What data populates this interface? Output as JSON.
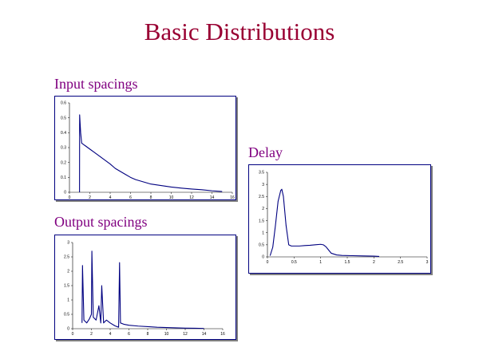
{
  "slide": {
    "title": "Basic Distributions"
  },
  "chart_data": [
    {
      "id": "input",
      "type": "line",
      "title": "Input spacings",
      "xlim": [
        0,
        16
      ],
      "ylim": [
        0,
        0.6
      ],
      "x_ticks": [
        0,
        2,
        4,
        6,
        8,
        10,
        12,
        14,
        16
      ],
      "y_ticks": [
        0,
        0.1,
        0.2,
        0.3,
        0.4,
        0.5,
        0.6
      ],
      "x_tick_labels": [
        "0",
        "2",
        "4",
        "6",
        "8",
        "10",
        "12",
        "14",
        "16"
      ],
      "y_tick_labels": [
        "0",
        "0.1",
        "0.2",
        "0.3",
        "0.4",
        "0.5",
        "0.6"
      ],
      "grid": false,
      "color": "#000080",
      "series": [
        {
          "x": [
            0.99,
            1.0,
            1.1,
            1.2,
            1.4,
            1.6,
            1.8,
            2.0,
            2.4,
            2.8,
            3.2,
            3.6,
            4.0,
            4.5,
            5.0,
            5.5,
            6.0,
            6.5,
            7.0,
            7.5,
            8.0,
            9.0,
            10.0,
            11.0,
            12.0,
            13.0,
            14.0,
            15.0
          ],
          "y": [
            0,
            0.52,
            0.4,
            0.33,
            0.32,
            0.31,
            0.3,
            0.29,
            0.27,
            0.25,
            0.23,
            0.21,
            0.19,
            0.16,
            0.14,
            0.12,
            0.1,
            0.085,
            0.075,
            0.065,
            0.055,
            0.045,
            0.035,
            0.028,
            0.022,
            0.017,
            0.01,
            0.005
          ]
        }
      ]
    },
    {
      "id": "delay",
      "type": "line",
      "title": "Delay",
      "xlim": [
        0,
        3
      ],
      "ylim": [
        0,
        3.5
      ],
      "x_ticks": [
        0,
        0.5,
        1,
        1.5,
        2,
        2.5,
        3
      ],
      "y_ticks": [
        0,
        0.5,
        1,
        1.5,
        2,
        2.5,
        3,
        3.5
      ],
      "x_tick_labels": [
        "0",
        "0.5",
        "1",
        "1.5",
        "2",
        "2.5",
        "3"
      ],
      "y_tick_labels": [
        "0",
        "0.5",
        "1",
        "1.5",
        "2",
        "2.5",
        "3",
        "3.5"
      ],
      "grid": false,
      "color": "#000080",
      "series": [
        {
          "x": [
            0.05,
            0.1,
            0.15,
            0.2,
            0.25,
            0.27,
            0.3,
            0.35,
            0.4,
            0.45,
            0.5,
            0.6,
            0.7,
            0.8,
            0.9,
            1.0,
            1.05,
            1.1,
            1.15,
            1.2,
            1.3,
            1.4,
            1.6,
            1.8,
            2.0,
            2.1
          ],
          "y": [
            0.05,
            0.4,
            1.3,
            2.3,
            2.75,
            2.8,
            2.5,
            1.3,
            0.5,
            0.45,
            0.45,
            0.45,
            0.47,
            0.48,
            0.5,
            0.52,
            0.5,
            0.42,
            0.28,
            0.15,
            0.08,
            0.06,
            0.05,
            0.04,
            0.03,
            0.02
          ]
        }
      ]
    },
    {
      "id": "output",
      "type": "line",
      "title": "Output spacings",
      "xlim": [
        0,
        16
      ],
      "ylim": [
        0,
        3
      ],
      "x_ticks": [
        0,
        2,
        4,
        6,
        8,
        10,
        12,
        14,
        16
      ],
      "y_ticks": [
        0,
        0.5,
        1,
        1.5,
        2,
        2.5,
        3
      ],
      "x_tick_labels": [
        "0",
        "2",
        "4",
        "6",
        "8",
        "10",
        "12",
        "14",
        "16"
      ],
      "y_tick_labels": [
        "0",
        "0.5",
        "1",
        "1.5",
        "2",
        "2.5",
        "3"
      ],
      "grid": false,
      "color": "#000080",
      "series": [
        {
          "x": [
            1.0,
            1.05,
            1.2,
            1.5,
            1.8,
            2.0,
            2.05,
            2.2,
            2.5,
            2.8,
            3.0,
            3.1,
            3.3,
            3.6,
            4.0,
            4.5,
            4.9,
            5.0,
            5.1,
            5.5,
            6.0,
            7.0,
            8.0,
            9.0,
            10.0,
            11.0,
            12.0,
            13.0,
            14.0
          ],
          "y": [
            0.2,
            2.2,
            0.3,
            0.2,
            0.35,
            0.5,
            2.7,
            0.4,
            0.3,
            0.8,
            0.2,
            1.5,
            0.2,
            0.3,
            0.2,
            0.1,
            0.05,
            2.3,
            0.2,
            0.15,
            0.12,
            0.09,
            0.07,
            0.05,
            0.04,
            0.03,
            0.02,
            0.015,
            0.01
          ]
        }
      ]
    }
  ]
}
